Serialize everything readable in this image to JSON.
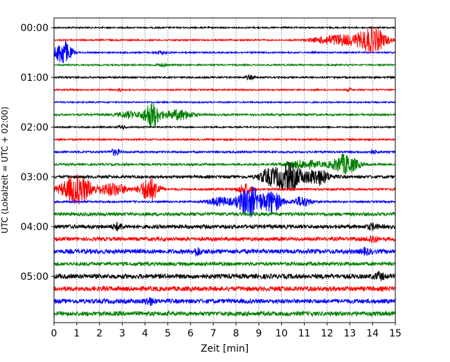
{
  "chart_data": {
    "type": "line",
    "title": "",
    "xlabel": "Zeit  [min]",
    "ylabel": "UTC (Lokalzeit = UTC + 02:00)",
    "xlim": [
      0,
      15
    ],
    "x_ticks": [
      "0",
      "1",
      "2",
      "3",
      "4",
      "5",
      "6",
      "7",
      "8",
      "9",
      "10",
      "11",
      "12",
      "13",
      "14",
      "15"
    ],
    "y_ticks": [
      "00:00",
      "01:00",
      "02:00",
      "03:00",
      "04:00",
      "05:00"
    ],
    "grid": "vertical-dotted",
    "trace_interval_min": 15,
    "trace_colors": [
      "#000000",
      "#ff0000",
      "#0000ff",
      "#008000"
    ],
    "traces": [
      {
        "start": "00:00",
        "noise": 0.06,
        "events": []
      },
      {
        "start": "00:15",
        "noise": 0.06,
        "events": [
          {
            "t": 14.0,
            "amp": 1.0,
            "w": 0.6
          },
          {
            "t": 12.5,
            "amp": 0.45,
            "w": 1.0
          }
        ]
      },
      {
        "start": "00:30",
        "noise": 0.06,
        "events": [
          {
            "t": 0.4,
            "amp": 1.0,
            "w": 0.35
          },
          {
            "t": 4.7,
            "amp": 0.12,
            "w": 0.3
          }
        ]
      },
      {
        "start": "00:45",
        "noise": 0.06,
        "events": [
          {
            "t": 4.7,
            "amp": 0.1,
            "w": 0.3
          }
        ]
      },
      {
        "start": "01:00",
        "noise": 0.07,
        "events": [
          {
            "t": 8.6,
            "amp": 0.15,
            "w": 0.2
          }
        ]
      },
      {
        "start": "01:15",
        "noise": 0.06,
        "events": [
          {
            "t": 2.9,
            "amp": 0.12,
            "w": 0.1
          },
          {
            "t": 13.0,
            "amp": 0.12,
            "w": 0.1
          }
        ]
      },
      {
        "start": "01:30",
        "noise": 0.06,
        "events": []
      },
      {
        "start": "01:45",
        "noise": 0.08,
        "events": [
          {
            "t": 4.3,
            "amp": 1.05,
            "w": 0.35
          },
          {
            "t": 5.5,
            "amp": 0.4,
            "w": 0.6
          },
          {
            "t": 3.3,
            "amp": 0.25,
            "w": 0.5
          }
        ]
      },
      {
        "start": "02:00",
        "noise": 0.06,
        "events": [
          {
            "t": 3.0,
            "amp": 0.12,
            "w": 0.2
          }
        ]
      },
      {
        "start": "02:15",
        "noise": 0.07,
        "events": []
      },
      {
        "start": "02:30",
        "noise": 0.08,
        "events": [
          {
            "t": 2.7,
            "amp": 0.25,
            "w": 0.2
          },
          {
            "t": 14.0,
            "amp": 0.15,
            "w": 0.2
          }
        ]
      },
      {
        "start": "02:45",
        "noise": 0.09,
        "events": [
          {
            "t": 12.8,
            "amp": 0.8,
            "w": 0.55
          },
          {
            "t": 11.0,
            "amp": 0.3,
            "w": 0.8
          }
        ]
      },
      {
        "start": "03:00",
        "noise": 0.12,
        "events": [
          {
            "t": 10.3,
            "amp": 1.1,
            "w": 0.6
          },
          {
            "t": 11.6,
            "amp": 0.6,
            "w": 0.5
          },
          {
            "t": 9.4,
            "amp": 0.5,
            "w": 0.4
          }
        ]
      },
      {
        "start": "03:15",
        "noise": 0.09,
        "events": [
          {
            "t": 1.0,
            "amp": 1.2,
            "w": 0.65
          },
          {
            "t": 4.2,
            "amp": 1.0,
            "w": 0.4
          },
          {
            "t": 8.4,
            "amp": 0.45,
            "w": 0.3
          },
          {
            "t": 2.6,
            "amp": 0.5,
            "w": 0.6
          }
        ]
      },
      {
        "start": "03:30",
        "noise": 0.08,
        "events": [
          {
            "t": 8.6,
            "amp": 1.25,
            "w": 0.5
          },
          {
            "t": 9.6,
            "amp": 0.9,
            "w": 0.4
          },
          {
            "t": 7.3,
            "amp": 0.35,
            "w": 0.5
          },
          {
            "t": 10.9,
            "amp": 0.4,
            "w": 0.4
          }
        ]
      },
      {
        "start": "03:45",
        "noise": 0.14,
        "events": []
      },
      {
        "start": "04:00",
        "noise": 0.16,
        "events": [
          {
            "t": 2.8,
            "amp": 0.25,
            "w": 0.2
          },
          {
            "t": 14.0,
            "amp": 0.2,
            "w": 0.2
          }
        ]
      },
      {
        "start": "04:15",
        "noise": 0.15,
        "events": [
          {
            "t": 14.0,
            "amp": 0.3,
            "w": 0.2
          }
        ]
      },
      {
        "start": "04:30",
        "noise": 0.18,
        "events": [
          {
            "t": 6.3,
            "amp": 0.3,
            "w": 0.15
          },
          {
            "t": 13.7,
            "amp": 0.2,
            "w": 0.2
          }
        ]
      },
      {
        "start": "04:45",
        "noise": 0.15,
        "events": []
      },
      {
        "start": "05:00",
        "noise": 0.19,
        "events": [
          {
            "t": 14.3,
            "amp": 0.25,
            "w": 0.2
          }
        ]
      },
      {
        "start": "05:15",
        "noise": 0.19,
        "events": []
      },
      {
        "start": "05:30",
        "noise": 0.18,
        "events": [
          {
            "t": 4.2,
            "amp": 0.25,
            "w": 0.2
          }
        ]
      },
      {
        "start": "05:45",
        "noise": 0.18,
        "events": []
      }
    ]
  }
}
